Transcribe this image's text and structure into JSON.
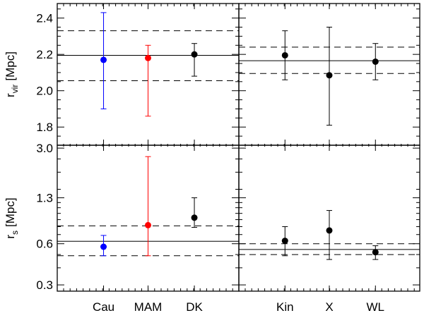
{
  "chart_data": {
    "type": "scatter",
    "panel_rows": [
      {
        "ylabel_main": "r",
        "ylabel_sub": "vir",
        "ylabel_unit": "[Mpc]",
        "ylim": [
          1.7,
          2.48
        ],
        "scale": "linear",
        "yticks": [
          1.8,
          2.0,
          2.2,
          2.4
        ],
        "ytick_labels": [
          "1.8",
          "2.0",
          "2.2",
          "2.4"
        ],
        "minor_ticks": [
          1.75,
          1.85,
          1.9,
          1.95,
          2.05,
          2.1,
          2.15,
          2.25,
          2.3,
          2.35,
          2.45
        ]
      },
      {
        "ylabel_main": "r",
        "ylabel_sub": "s",
        "ylabel_unit": "[Mpc]",
        "ylim": [
          0.27,
          3.15
        ],
        "scale": "log",
        "yticks": [
          0.3,
          0.6,
          1.3,
          3.0
        ],
        "ytick_labels": [
          "0.3",
          "0.6",
          "1.3",
          "3.0"
        ],
        "minor_ticks": [
          0.4,
          0.5,
          0.7,
          0.8,
          0.9,
          1.0,
          1.1,
          1.2,
          1.5,
          2.0,
          2.5
        ]
      }
    ],
    "panels": [
      {
        "row": 0,
        "col": 0,
        "categories": [
          "Cau",
          "MAM",
          "DK"
        ],
        "points": [
          {
            "label": "Cau",
            "y": 2.17,
            "lo": 1.9,
            "hi": 2.43,
            "color": "#0000ff"
          },
          {
            "label": "MAM",
            "y": 2.18,
            "lo": 1.86,
            "hi": 2.25,
            "color": "#ff0000"
          },
          {
            "label": "DK",
            "y": 2.2,
            "lo": 2.08,
            "hi": 2.26,
            "color": "#000000"
          }
        ],
        "ref_line": 2.195,
        "ref_band": [
          2.055,
          2.33
        ]
      },
      {
        "row": 0,
        "col": 1,
        "categories": [
          "Kin",
          "X",
          "WL"
        ],
        "points": [
          {
            "label": "Kin",
            "y": 2.195,
            "lo": 2.06,
            "hi": 2.33,
            "color": "#000000"
          },
          {
            "label": "X",
            "y": 2.085,
            "lo": 1.81,
            "hi": 2.35,
            "color": "#000000"
          },
          {
            "label": "WL",
            "y": 2.16,
            "lo": 2.06,
            "hi": 2.26,
            "color": "#000000"
          }
        ],
        "ref_line": 2.165,
        "ref_band": [
          2.095,
          2.24
        ]
      },
      {
        "row": 1,
        "col": 0,
        "categories": [
          "Cau",
          "MAM",
          "DK"
        ],
        "points": [
          {
            "label": "Cau",
            "y": 0.57,
            "lo": 0.49,
            "hi": 0.69,
            "color": "#0000ff"
          },
          {
            "label": "MAM",
            "y": 0.82,
            "lo": 0.49,
            "hi": 2.6,
            "color": "#ff0000"
          },
          {
            "label": "DK",
            "y": 0.93,
            "lo": 0.79,
            "hi": 1.3,
            "color": "#000000"
          }
        ],
        "ref_line": 0.625,
        "ref_band": [
          0.49,
          0.81
        ]
      },
      {
        "row": 1,
        "col": 1,
        "categories": [
          "Kin",
          "X",
          "WL"
        ],
        "points": [
          {
            "label": "Kin",
            "y": 0.63,
            "lo": 0.49,
            "hi": 0.8,
            "color": "#000000"
          },
          {
            "label": "X",
            "y": 0.75,
            "lo": 0.46,
            "hi": 1.05,
            "color": "#000000"
          },
          {
            "label": "WL",
            "y": 0.52,
            "lo": 0.46,
            "hi": 0.58,
            "color": "#000000"
          }
        ],
        "ref_line": 0.545,
        "ref_band": [
          0.5,
          0.6
        ]
      }
    ],
    "xlabels": [
      "Cau",
      "MAM",
      "DK",
      "Kin",
      "X",
      "WL"
    ]
  }
}
